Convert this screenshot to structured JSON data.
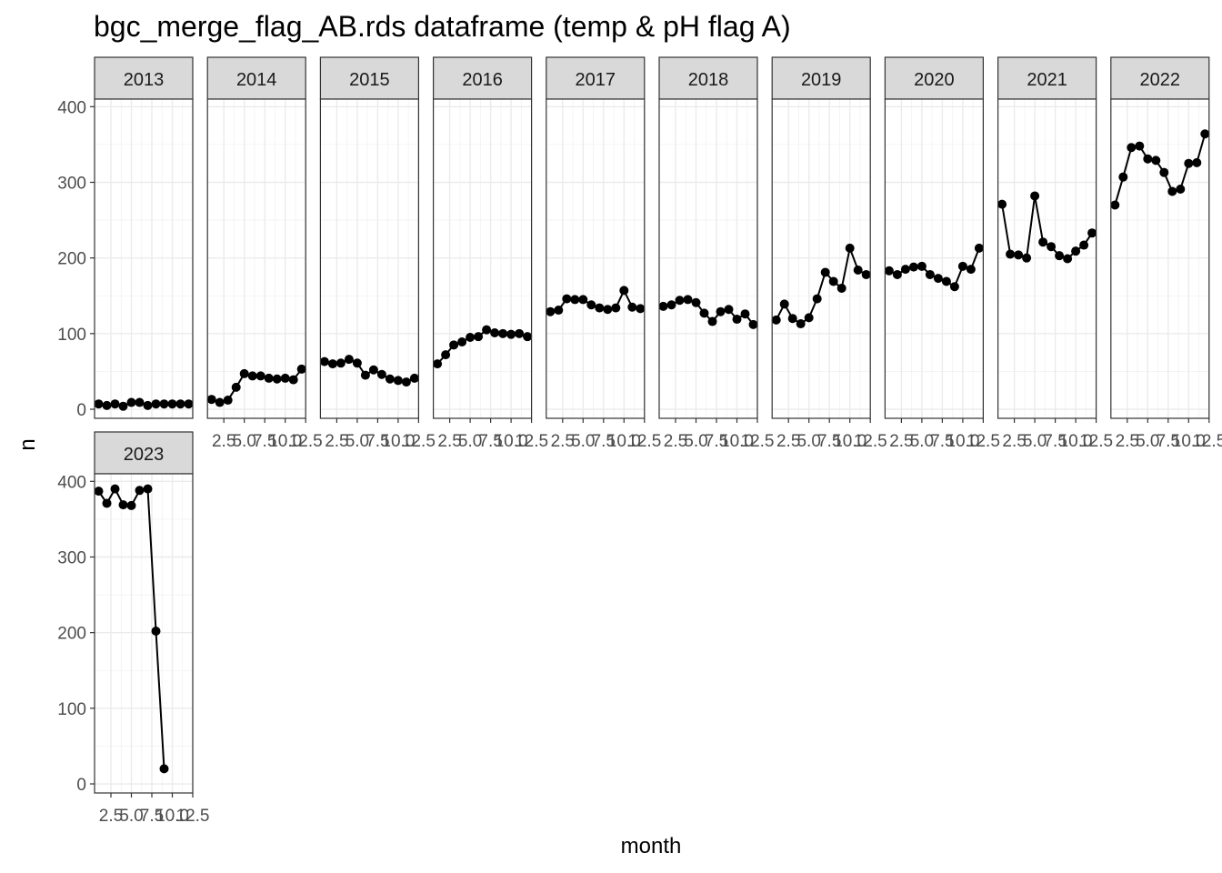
{
  "chart_data": {
    "type": "line",
    "title": "bgc_merge_flag_AB.rds dataframe (temp & pH flag A)",
    "xlabel": "month",
    "ylabel": "n",
    "xlim": [
      0.5,
      12.5
    ],
    "ylim": [
      -12,
      410
    ],
    "x_ticks": [
      2.5,
      5.0,
      7.5,
      10.0,
      12.5
    ],
    "x_tick_labels": [
      "2.5",
      "5.0",
      "7.5",
      "10.0",
      "12.5"
    ],
    "y_ticks": [
      0,
      100,
      200,
      300,
      400
    ],
    "y_tick_labels": [
      "0",
      "100",
      "200",
      "300",
      "400"
    ],
    "grid": true,
    "facets": [
      {
        "label": "2013",
        "x": [
          1,
          2,
          3,
          4,
          5,
          6,
          7,
          8,
          9,
          10,
          11,
          12
        ],
        "y": [
          7,
          5,
          7,
          4,
          9,
          9,
          5,
          7,
          7,
          7,
          7,
          7
        ]
      },
      {
        "label": "2014",
        "x": [
          1,
          2,
          3,
          4,
          5,
          6,
          7,
          8,
          9,
          10,
          11,
          12
        ],
        "y": [
          13,
          9,
          12,
          29,
          47,
          44,
          44,
          41,
          40,
          41,
          39,
          53
        ]
      },
      {
        "label": "2015",
        "x": [
          1,
          2,
          3,
          4,
          5,
          6,
          7,
          8,
          9,
          10,
          11,
          12
        ],
        "y": [
          63,
          60,
          61,
          66,
          61,
          45,
          52,
          46,
          40,
          38,
          36,
          41
        ]
      },
      {
        "label": "2016",
        "x": [
          1,
          2,
          3,
          4,
          5,
          6,
          7,
          8,
          9,
          10,
          11,
          12
        ],
        "y": [
          60,
          72,
          85,
          89,
          95,
          96,
          105,
          101,
          100,
          99,
          100,
          96
        ]
      },
      {
        "label": "2017",
        "x": [
          1,
          2,
          3,
          4,
          5,
          6,
          7,
          8,
          9,
          10,
          11,
          12
        ],
        "y": [
          129,
          131,
          146,
          145,
          145,
          138,
          134,
          132,
          134,
          157,
          135,
          133
        ]
      },
      {
        "label": "2018",
        "x": [
          1,
          2,
          3,
          4,
          5,
          6,
          7,
          8,
          9,
          10,
          11,
          12
        ],
        "y": [
          136,
          138,
          144,
          145,
          141,
          127,
          116,
          129,
          132,
          119,
          126,
          112
        ]
      },
      {
        "label": "2019",
        "x": [
          1,
          2,
          3,
          4,
          5,
          6,
          7,
          8,
          9,
          10,
          11,
          12
        ],
        "y": [
          118,
          139,
          120,
          113,
          121,
          146,
          181,
          169,
          160,
          213,
          184,
          178
        ]
      },
      {
        "label": "2020",
        "x": [
          1,
          2,
          3,
          4,
          5,
          6,
          7,
          8,
          9,
          10,
          11,
          12
        ],
        "y": [
          183,
          178,
          185,
          188,
          189,
          178,
          173,
          169,
          162,
          189,
          185,
          213
        ]
      },
      {
        "label": "2021",
        "x": [
          1,
          2,
          3,
          4,
          5,
          6,
          7,
          8,
          9,
          10,
          11,
          12
        ],
        "y": [
          271,
          205,
          204,
          200,
          282,
          221,
          215,
          203,
          199,
          209,
          217,
          233
        ]
      },
      {
        "label": "2022",
        "x": [
          1,
          2,
          3,
          4,
          5,
          6,
          7,
          8,
          9,
          10,
          11,
          12
        ],
        "y": [
          270,
          307,
          346,
          348,
          331,
          329,
          313,
          288,
          291,
          325,
          326,
          364
        ]
      },
      {
        "label": "2023",
        "x": [
          1,
          2,
          3,
          4,
          5,
          6,
          7,
          8,
          9
        ],
        "y": [
          387,
          371,
          390,
          369,
          368,
          388,
          390,
          202,
          20
        ]
      }
    ]
  }
}
